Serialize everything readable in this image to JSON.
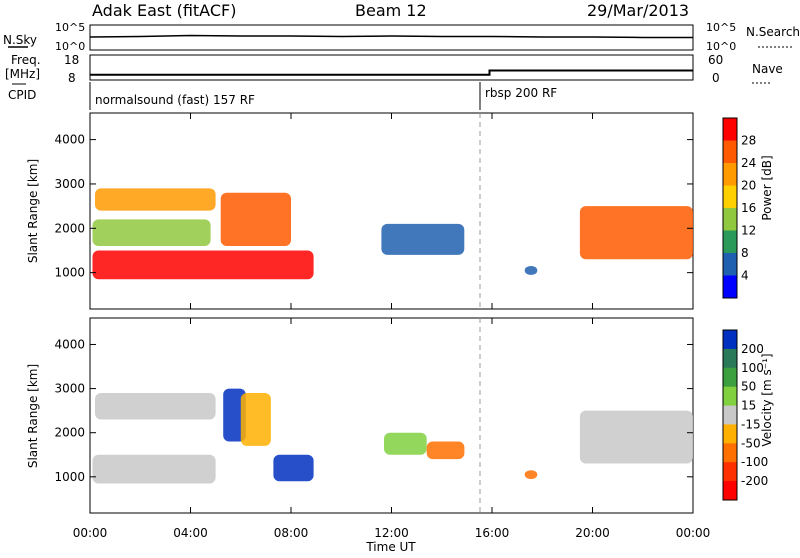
{
  "header": {
    "title": "Adak East (fitACF)",
    "beam": "Beam 12",
    "date": "29/Mar/2013"
  },
  "top_panels": {
    "nsky_label": "N.Sky",
    "nsky_ticks": [
      "10^5",
      "10^0"
    ],
    "nsearch_label": "N.Search",
    "nsearch_ticks": [
      "10^5",
      "10^0"
    ],
    "freq_label": "Freq.",
    "freq_unit": "[MHz]",
    "freq_ticks": [
      "18",
      "8"
    ],
    "nave_label": "Nave",
    "nave_ticks": [
      "60",
      "0"
    ],
    "cpid_label": "CPID",
    "cpid_segments": [
      "normalsound (fast) 157 RF",
      "rbsp 200 RF"
    ]
  },
  "power_panel": {
    "ylabel": "Slant Range [km]",
    "cbar_label": "Power [dB]",
    "cbar_ticks": [
      "28",
      "24",
      "20",
      "16",
      "12",
      "8",
      "4"
    ],
    "cbar_colors": [
      "#ff0000",
      "#ff5a00",
      "#ff9a00",
      "#ffd000",
      "#90c840",
      "#2a9a5a",
      "#2060b0",
      "#0000ff"
    ]
  },
  "velocity_panel": {
    "ylabel": "Slant Range [km]",
    "cbar_label": "Velocity [m s⁻¹]",
    "cbar_ticks": [
      "200",
      "100",
      "50",
      "15",
      "-15",
      "-50",
      "-100",
      "-200"
    ],
    "cbar_colors": [
      "#0030c0",
      "#2a7a5a",
      "#3ca040",
      "#80d040",
      "#c8c8c8",
      "#ffb000",
      "#ff7000",
      "#ff3000",
      "#ff0000"
    ]
  },
  "x_axis": {
    "label": "Time UT",
    "ticks": [
      "00:00",
      "04:00",
      "08:00",
      "12:00",
      "16:00",
      "20:00",
      "00:00"
    ]
  },
  "chart_data": [
    {
      "type": "line",
      "panel": "N.Sky / N.Search (log scale)",
      "x_unit": "hours UT",
      "xlim": [
        0,
        24
      ],
      "ylim_log10": [
        0,
        5
      ],
      "series": [
        {
          "name": "N.Sky",
          "x": [
            0,
            2,
            4,
            6,
            8,
            10,
            12,
            14,
            16,
            18,
            20,
            22,
            24
          ],
          "y_log10": [
            2.6,
            2.7,
            2.9,
            2.8,
            2.8,
            2.7,
            2.8,
            2.7,
            2.7,
            2.6,
            2.6,
            2.5,
            2.5
          ]
        }
      ]
    },
    {
      "type": "line",
      "panel": "Freq. / Nave",
      "x_unit": "hours UT",
      "xlim": [
        0,
        24
      ],
      "ylim": [
        8,
        18
      ],
      "series": [
        {
          "name": "Freq.",
          "x": [
            0,
            15.9,
            15.9,
            24
          ],
          "y": [
            10.1,
            10.1,
            11.8,
            11.8
          ]
        }
      ]
    },
    {
      "type": "scatter",
      "panel": "Power",
      "x_unit": "hours UT",
      "ylabel": "Slant Range [km]",
      "xlim": [
        0,
        24
      ],
      "ylim": [
        180,
        4600
      ],
      "y_ticks": [
        1000,
        2000,
        3000,
        4000
      ],
      "clim": [
        0,
        30
      ],
      "regions": [
        {
          "t0": 0.1,
          "t1": 8.9,
          "r0": 850,
          "r1": 1500,
          "value": 27
        },
        {
          "t0": 0.1,
          "t1": 4.8,
          "r0": 1600,
          "r1": 2200,
          "value": 14
        },
        {
          "t0": 0.2,
          "t1": 5.0,
          "r0": 2400,
          "r1": 2900,
          "value": 20
        },
        {
          "t0": 5.2,
          "t1": 8.0,
          "r0": 1600,
          "r1": 2800,
          "value": 26
        },
        {
          "t0": 11.6,
          "t1": 14.9,
          "r0": 1400,
          "r1": 2100,
          "value": 6
        },
        {
          "t0": 17.3,
          "t1": 17.8,
          "r0": 950,
          "r1": 1150,
          "value": 5
        },
        {
          "t0": 19.5,
          "t1": 24.0,
          "r0": 1300,
          "r1": 2500,
          "value": 24
        }
      ]
    },
    {
      "type": "scatter",
      "panel": "Velocity",
      "x_unit": "hours UT",
      "ylabel": "Slant Range [km]",
      "xlim": [
        0,
        24
      ],
      "ylim": [
        180,
        4600
      ],
      "y_ticks": [
        1000,
        2000,
        3000,
        4000
      ],
      "clim": [
        -200,
        200
      ],
      "regions": [
        {
          "t0": 0.1,
          "t1": 5.0,
          "r0": 850,
          "r1": 1500,
          "value": 0
        },
        {
          "t0": 0.2,
          "t1": 5.0,
          "r0": 2300,
          "r1": 2900,
          "value": 0
        },
        {
          "t0": 5.3,
          "t1": 6.2,
          "r0": 1800,
          "r1": 3000,
          "value": 210
        },
        {
          "t0": 6.0,
          "t1": 7.2,
          "r0": 1700,
          "r1": 2900,
          "value": -40
        },
        {
          "t0": 7.3,
          "t1": 8.9,
          "r0": 900,
          "r1": 1500,
          "value": 220
        },
        {
          "t0": 11.7,
          "t1": 13.4,
          "r0": 1500,
          "r1": 2000,
          "value": 60
        },
        {
          "t0": 13.4,
          "t1": 14.9,
          "r0": 1400,
          "r1": 1800,
          "value": -70
        },
        {
          "t0": 17.3,
          "t1": 17.8,
          "r0": 950,
          "r1": 1150,
          "value": -80
        },
        {
          "t0": 19.5,
          "t1": 24.0,
          "r0": 1300,
          "r1": 2500,
          "value": 0
        }
      ]
    }
  ]
}
